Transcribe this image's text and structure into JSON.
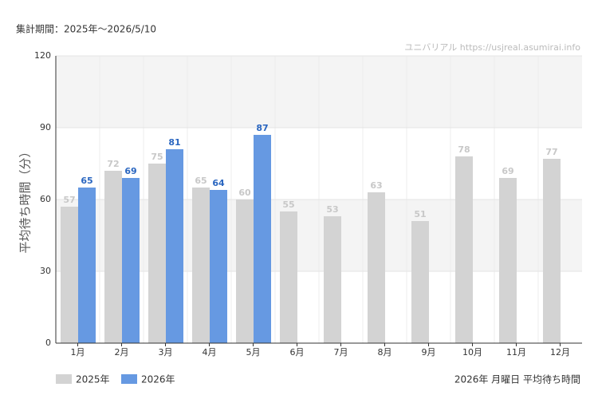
{
  "chart_data": {
    "type": "bar",
    "period_note": "集計期間：2025年〜2026/5/10",
    "watermark": "ユニバリアル  https://usjreal.asumirai.info",
    "y_label": "平均待ち時間（分）",
    "footer": "2026年 月曜日 平均待ち時間",
    "categories": [
      "1月",
      "2月",
      "3月",
      "4月",
      "5月",
      "6月",
      "7月",
      "8月",
      "9月",
      "10月",
      "11月",
      "12月"
    ],
    "series": [
      {
        "name": "2025年",
        "color": "#d3d3d3",
        "label_color": "#c8c8c8",
        "values": [
          57,
          72,
          75,
          65,
          60,
          55,
          53,
          63,
          51,
          78,
          69,
          77
        ]
      },
      {
        "name": "2026年",
        "color": "#6699e2",
        "label_color": "#2a66c0",
        "values": [
          65,
          69,
          81,
          64,
          87,
          null,
          null,
          null,
          null,
          null,
          null,
          null
        ]
      }
    ],
    "ylim": [
      0,
      120
    ],
    "yticks": [
      0,
      30,
      60,
      90,
      120
    ],
    "grid": true
  }
}
